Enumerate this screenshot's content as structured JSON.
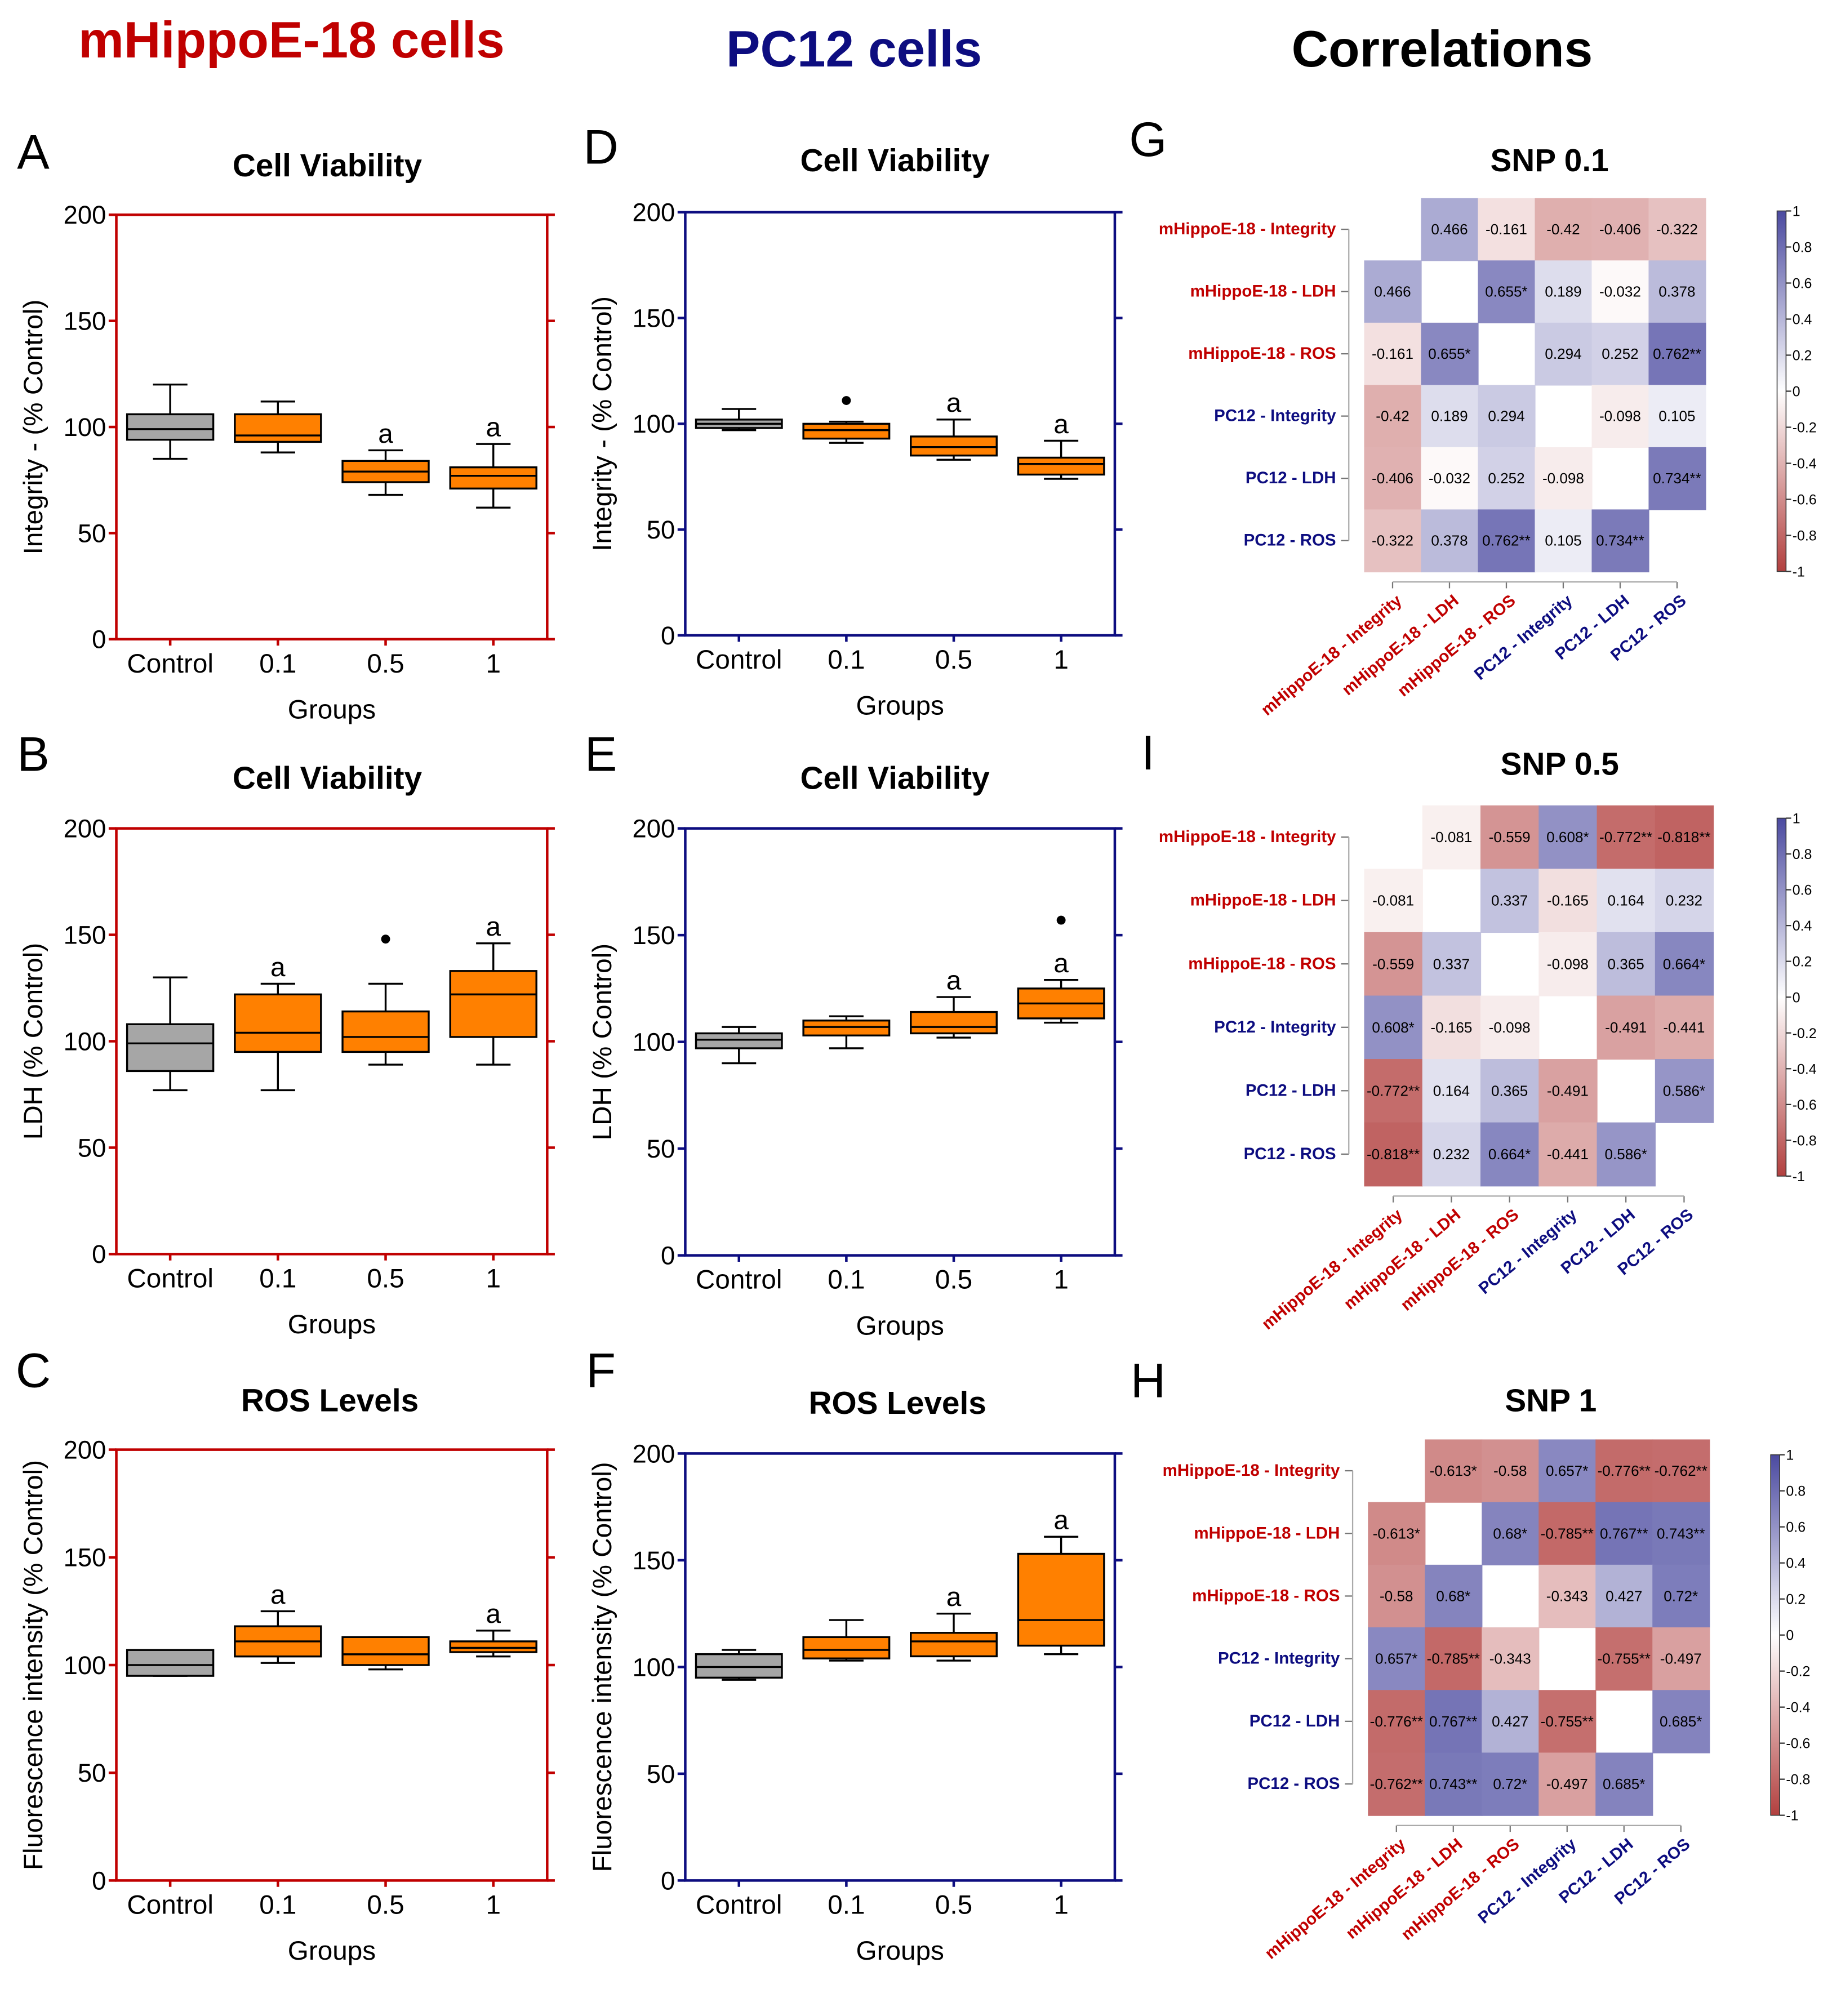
{
  "headings": {
    "left": "mHippoE-18 cells",
    "middle": "PC12 cells",
    "right": "Correlations"
  },
  "colors": {
    "mhippo": "#c00000",
    "pc12": "#0d0d80",
    "box_control": "#a6a6a6",
    "box_treated": "#ff8000",
    "corr_neg": "#b2403f",
    "corr_pos": "#4b4aa0"
  },
  "chart_data": [
    {
      "panel": "A",
      "type": "box",
      "title": "Cell Viability",
      "xlabel": "Groups",
      "ylabel": "Integrity - (% Control)",
      "ylim": [
        0,
        200
      ],
      "yticks": [
        0,
        50,
        100,
        150,
        200
      ],
      "frame": "mhippo",
      "categories": [
        "Control",
        "0.1",
        "0.5",
        "1"
      ],
      "boxes": [
        {
          "min": 85,
          "q1": 94,
          "median": 99,
          "q3": 106,
          "max": 120,
          "label": ""
        },
        {
          "min": 88,
          "q1": 93,
          "median": 96,
          "q3": 106,
          "max": 112,
          "label": ""
        },
        {
          "min": 68,
          "q1": 74,
          "median": 79,
          "q3": 84,
          "max": 89,
          "label": "a"
        },
        {
          "min": 62,
          "q1": 71,
          "median": 77,
          "q3": 81,
          "max": 92,
          "label": "a"
        }
      ]
    },
    {
      "panel": "B",
      "type": "box",
      "title": "Cell Viability",
      "xlabel": "Groups",
      "ylabel": "LDH (% Control)",
      "ylim": [
        0,
        200
      ],
      "yticks": [
        0,
        50,
        100,
        150,
        200
      ],
      "frame": "mhippo",
      "categories": [
        "Control",
        "0.1",
        "0.5",
        "1"
      ],
      "boxes": [
        {
          "min": 77,
          "q1": 86,
          "median": 99,
          "q3": 108,
          "max": 130,
          "label": ""
        },
        {
          "min": 77,
          "q1": 95,
          "median": 104,
          "q3": 122,
          "max": 127,
          "label": "a"
        },
        {
          "min": 89,
          "q1": 95,
          "median": 102,
          "q3": 114,
          "max": 127,
          "label": "",
          "outliers": [
            148
          ]
        },
        {
          "min": 89,
          "q1": 102,
          "median": 122,
          "q3": 133,
          "max": 146,
          "label": "a"
        }
      ]
    },
    {
      "panel": "C",
      "type": "box",
      "title": "ROS Levels",
      "xlabel": "Groups",
      "ylabel": "Fluorescence intensity (% Control)",
      "ylim": [
        0,
        200
      ],
      "yticks": [
        0,
        50,
        100,
        150,
        200
      ],
      "frame": "mhippo",
      "categories": [
        "Control",
        "0.1",
        "0.5",
        "1"
      ],
      "boxes": [
        {
          "min": 95,
          "q1": 95,
          "median": 100,
          "q3": 107,
          "max": 107,
          "label": ""
        },
        {
          "min": 101,
          "q1": 104,
          "median": 111,
          "q3": 118,
          "max": 125,
          "label": "a"
        },
        {
          "min": 98,
          "q1": 100,
          "median": 105,
          "q3": 113,
          "max": 113,
          "label": ""
        },
        {
          "min": 104,
          "q1": 106,
          "median": 108,
          "q3": 111,
          "max": 116,
          "label": "a"
        }
      ]
    },
    {
      "panel": "D",
      "type": "box",
      "title": "Cell Viability",
      "xlabel": "Groups",
      "ylabel": "Integrity - (% Control)",
      "ylim": [
        0,
        200
      ],
      "yticks": [
        0,
        50,
        100,
        150,
        200
      ],
      "frame": "pc12",
      "categories": [
        "Control",
        "0.1",
        "0.5",
        "1"
      ],
      "boxes": [
        {
          "min": 97,
          "q1": 98,
          "median": 100,
          "q3": 102,
          "max": 107,
          "label": ""
        },
        {
          "min": 91,
          "q1": 93,
          "median": 97,
          "q3": 100,
          "max": 101,
          "label": "",
          "outliers": [
            111
          ]
        },
        {
          "min": 83,
          "q1": 85,
          "median": 89,
          "q3": 94,
          "max": 102,
          "label": "a"
        },
        {
          "min": 74,
          "q1": 76,
          "median": 81,
          "q3": 84,
          "max": 92,
          "label": "a"
        }
      ]
    },
    {
      "panel": "E",
      "type": "box",
      "title": "Cell Viability",
      "xlabel": "Groups",
      "ylabel": "LDH (% Control)",
      "ylim": [
        0,
        200
      ],
      "yticks": [
        0,
        50,
        100,
        150,
        200
      ],
      "frame": "pc12",
      "categories": [
        "Control",
        "0.1",
        "0.5",
        "1"
      ],
      "boxes": [
        {
          "min": 90,
          "q1": 97,
          "median": 101,
          "q3": 104,
          "max": 107,
          "label": ""
        },
        {
          "min": 97,
          "q1": 103,
          "median": 107,
          "q3": 110,
          "max": 112,
          "label": ""
        },
        {
          "min": 102,
          "q1": 104,
          "median": 107,
          "q3": 114,
          "max": 121,
          "label": "a"
        },
        {
          "min": 109,
          "q1": 111,
          "median": 118,
          "q3": 125,
          "max": 129,
          "label": "a",
          "outliers": [
            157
          ]
        }
      ]
    },
    {
      "panel": "F",
      "type": "box",
      "title": "ROS Levels",
      "xlabel": "Groups",
      "ylabel": "Fluorescence intensity (% Control)",
      "ylim": [
        0,
        200
      ],
      "yticks": [
        0,
        50,
        100,
        150,
        200
      ],
      "frame": "pc12",
      "categories": [
        "Control",
        "0.1",
        "0.5",
        "1"
      ],
      "boxes": [
        {
          "min": 94,
          "q1": 95,
          "median": 100,
          "q3": 106,
          "max": 108,
          "label": ""
        },
        {
          "min": 103,
          "q1": 104,
          "median": 108,
          "q3": 114,
          "max": 122,
          "label": ""
        },
        {
          "min": 103,
          "q1": 105,
          "median": 112,
          "q3": 116,
          "max": 125,
          "label": "a"
        },
        {
          "min": 106,
          "q1": 110,
          "median": 122,
          "q3": 153,
          "max": 161,
          "label": "a"
        }
      ]
    },
    {
      "panel": "G",
      "type": "heatmap",
      "title": "SNP 0.1",
      "colorbar": {
        "range": [
          -1,
          1
        ],
        "ticks": [
          "1",
          "0.8",
          "0.6",
          "0.4",
          "0.2",
          "0",
          "-0.2",
          "-0.4",
          "-0.6",
          "-0.8",
          "-1"
        ]
      },
      "variables": [
        "mHippoE-18 - Integrity",
        "mHippoE-18 - LDH",
        "mHippoE-18 - ROS",
        "PC12 - Integrity",
        "PC12 - LDH",
        "PC12 - ROS"
      ],
      "labels": [
        [
          "",
          "0.466",
          "-0.161",
          "-0.42",
          "-0.406",
          "-0.322"
        ],
        [
          "0.466",
          "",
          "0.655*",
          "0.189",
          "-0.032",
          "0.378"
        ],
        [
          "-0.161",
          "0.655*",
          "",
          "0.294",
          "0.252",
          "0.762**"
        ],
        [
          "-0.42",
          "0.189",
          "0.294",
          "",
          "-0.098",
          "0.105"
        ],
        [
          "-0.406",
          "-0.032",
          "0.252",
          "-0.098",
          "",
          "0.734**"
        ],
        [
          "-0.322",
          "0.378",
          "0.762**",
          "0.105",
          "0.734**",
          ""
        ]
      ]
    },
    {
      "panel": "I",
      "type": "heatmap",
      "title": "SNP 0.5",
      "colorbar": {
        "range": [
          -1,
          1
        ],
        "ticks": [
          "1",
          "0.8",
          "0.6",
          "0.4",
          "0.2",
          "0",
          "-0.2",
          "-0.4",
          "-0.6",
          "-0.8",
          "-1"
        ]
      },
      "variables": [
        "mHippoE-18 - Integrity",
        "mHippoE-18 - LDH",
        "mHippoE-18 - ROS",
        "PC12 - Integrity",
        "PC12 - LDH",
        "PC12 - ROS"
      ],
      "labels": [
        [
          "",
          "-0.081",
          "-0.559",
          "0.608*",
          "-0.772**",
          "-0.818**"
        ],
        [
          "-0.081",
          "",
          "0.337",
          "-0.165",
          "0.164",
          "0.232"
        ],
        [
          "-0.559",
          "0.337",
          "",
          "-0.098",
          "0.365",
          "0.664*"
        ],
        [
          "0.608*",
          "-0.165",
          "-0.098",
          "",
          "-0.491",
          "-0.441"
        ],
        [
          "-0.772**",
          "0.164",
          "0.365",
          "-0.491",
          "",
          "0.586*"
        ],
        [
          "-0.818**",
          "0.232",
          "0.664*",
          "-0.441",
          "0.586*",
          ""
        ]
      ]
    },
    {
      "panel": "H",
      "type": "heatmap",
      "title": "SNP 1",
      "colorbar": {
        "range": [
          -1,
          1
        ],
        "ticks": [
          "1",
          "0.8",
          "0.6",
          "0.4",
          "0.2",
          "0",
          "-0.2",
          "-0.4",
          "-0.6",
          "-0.8",
          "-1"
        ]
      },
      "variables": [
        "mHippoE-18 - Integrity",
        "mHippoE-18 - LDH",
        "mHippoE-18 - ROS",
        "PC12 - Integrity",
        "PC12 - LDH",
        "PC12 - ROS"
      ],
      "labels": [
        [
          "",
          "-0.613*",
          "-0.58",
          "0.657*",
          "-0.776**",
          "-0.762**"
        ],
        [
          "-0.613*",
          "",
          "0.68*",
          "-0.785**",
          "0.767**",
          "0.743**"
        ],
        [
          "-0.58",
          "0.68*",
          "",
          "-0.343",
          "0.427",
          "0.72*"
        ],
        [
          "0.657*",
          "-0.785**",
          "-0.343",
          "",
          "-0.755**",
          "-0.497"
        ],
        [
          "-0.776**",
          "0.767**",
          "0.427",
          "-0.755**",
          "",
          "0.685*"
        ],
        [
          "-0.762**",
          "0.743**",
          "0.72*",
          "-0.497",
          "0.685*",
          ""
        ]
      ]
    }
  ]
}
